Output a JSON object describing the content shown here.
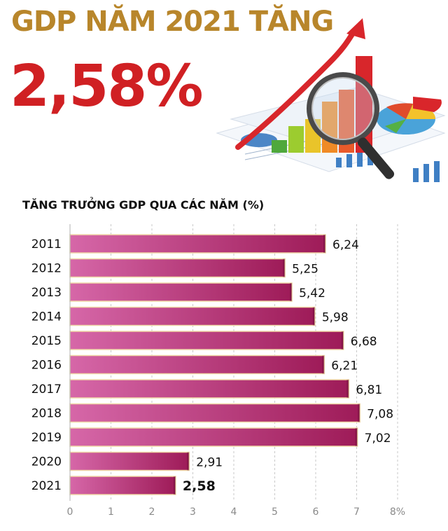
{
  "header": {
    "headline": "GDP NĂM 2021 TĂNG",
    "big_value": "2,58%"
  },
  "colors": {
    "headline": "#b8862b",
    "big_value": "#d02023",
    "bar_light": "#d667a8",
    "bar_dark": "#9e1b58",
    "bar_outline": "#f0d9a8"
  },
  "chart_data": {
    "type": "bar",
    "orientation": "horizontal",
    "title": "TĂNG TRƯỞNG GDP QUA CÁC NĂM (%)",
    "categories": [
      "2011",
      "2012",
      "2013",
      "2014",
      "2015",
      "2016",
      "2017",
      "2018",
      "2019",
      "2020",
      "2021"
    ],
    "values": [
      6.24,
      5.25,
      5.42,
      5.98,
      6.68,
      6.21,
      6.81,
      7.08,
      7.02,
      2.91,
      2.58
    ],
    "value_labels": [
      "6,24",
      "5,25",
      "5,42",
      "5,98",
      "6,68",
      "6,21",
      "6,81",
      "7,08",
      "7,02",
      "2,91",
      "2,58"
    ],
    "highlight": "2021",
    "xlim": [
      0,
      8
    ],
    "x_ticks": [
      "0",
      "1",
      "2",
      "3",
      "4",
      "5",
      "6",
      "7",
      "8%"
    ],
    "grid": "vertical dashed",
    "legend": "none"
  }
}
